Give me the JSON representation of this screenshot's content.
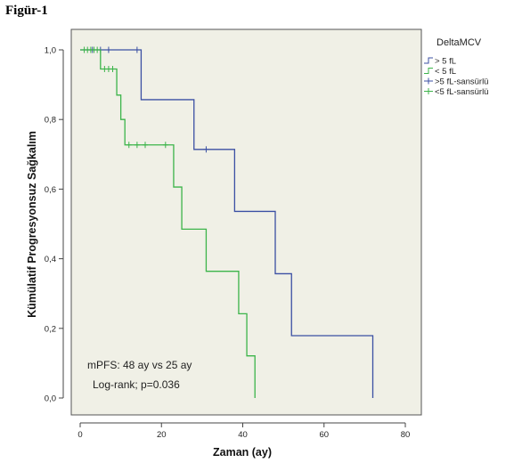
{
  "figure_label": "Figür-1",
  "chart_data": {
    "type": "line",
    "subtype": "kaplan-meier step",
    "xlabel": "Zaman (ay)",
    "ylabel": "Kümülatif Progresyonsuz Sağkalım",
    "xlim": [
      0,
      80
    ],
    "ylim": [
      0,
      1
    ],
    "x_ticks": [
      0,
      20,
      40,
      60,
      80
    ],
    "x_tick_labels": [
      "0",
      "20",
      "40",
      "60",
      "80"
    ],
    "y_ticks": [
      0,
      0.2,
      0.4,
      0.6,
      0.8,
      1.0
    ],
    "y_tick_labels": [
      "0,0",
      "0,2",
      "0,4",
      "0,6",
      "0,8",
      "1,0"
    ],
    "grid": false,
    "legend_title": "DeltaMCV",
    "legend_position": "top-right outside plot",
    "legend_entries": [
      "> 5 fL",
      "< 5 fL",
      ">5 fL-sansürlü",
      "<5 fL-sansürlü"
    ],
    "annotation_lines": [
      "mPFS: 48 ay vs 25 ay",
      "Log-rank; p=0.036"
    ],
    "series": [
      {
        "name": "> 5 fL",
        "censored_label": ">5 fL-sansürlü",
        "color": "#3b4fa3",
        "steps": [
          [
            0,
            1.0
          ],
          [
            15,
            0.857
          ],
          [
            28,
            0.714
          ],
          [
            38,
            0.536
          ],
          [
            48,
            0.357
          ],
          [
            52,
            0.179
          ],
          [
            72,
            0.0
          ]
        ],
        "end_x": 72,
        "censored": [
          [
            3,
            1.0
          ],
          [
            5,
            1.0
          ],
          [
            7,
            1.0
          ],
          [
            14,
            1.0
          ],
          [
            31,
            0.714
          ]
        ]
      },
      {
        "name": "< 5 fL",
        "censored_label": "<5 fL-sansürlü",
        "color": "#3cb44a",
        "steps": [
          [
            0,
            1.0
          ],
          [
            5,
            0.945
          ],
          [
            9,
            0.87
          ],
          [
            10,
            0.8
          ],
          [
            11,
            0.727
          ],
          [
            23,
            0.606
          ],
          [
            25,
            0.485
          ],
          [
            31,
            0.364
          ],
          [
            39,
            0.242
          ],
          [
            41,
            0.121
          ],
          [
            43,
            0.0
          ]
        ],
        "end_x": 43,
        "censored": [
          [
            1,
            1.0
          ],
          [
            1.8,
            1.0
          ],
          [
            2.6,
            1.0
          ],
          [
            3.4,
            1.0
          ],
          [
            4.2,
            1.0
          ],
          [
            6,
            0.945
          ],
          [
            7,
            0.945
          ],
          [
            8,
            0.945
          ],
          [
            12,
            0.727
          ],
          [
            14,
            0.727
          ],
          [
            16,
            0.727
          ],
          [
            21,
            0.727
          ]
        ]
      }
    ]
  }
}
